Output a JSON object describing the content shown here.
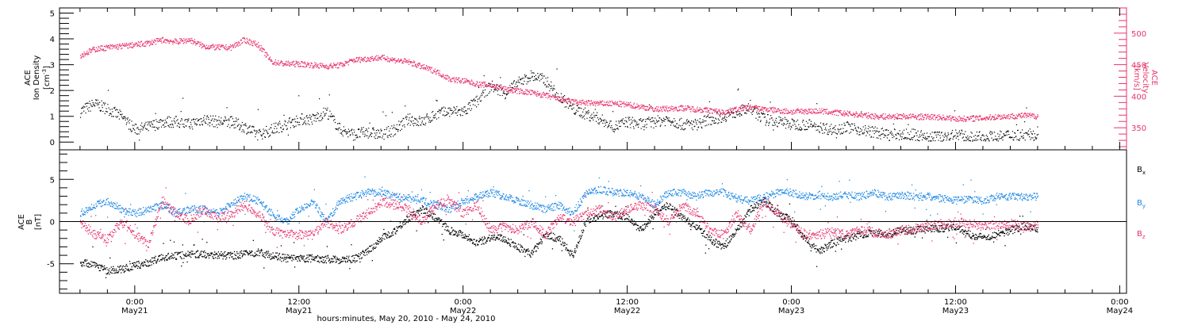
{
  "figure": {
    "xlabel": "hours:minutes, May 20, 2010 - May 24, 2010",
    "colors": {
      "axis": "#000000",
      "black": "#000000",
      "pink": "#e8336b",
      "blue": "#1e88e5"
    }
  },
  "chart_data": [
    {
      "type": "scatter",
      "name": "density-velocity",
      "left_ylabel_lines": [
        "ACE",
        "Ion Density"
      ],
      "left_unit": "[cm",
      "left_unit_sup": "-3",
      "left_unit_end": "]",
      "right_ylabel_lines": [
        "ACE",
        "Velocity",
        "[km/s]"
      ],
      "ylim_left": [
        -0.3,
        5.2
      ],
      "ylim_right": [
        315,
        540
      ],
      "yticks_left": [
        {
          "v": 0,
          "label": "0"
        },
        {
          "v": 1,
          "label": "1"
        },
        {
          "v": 2,
          "label": "2"
        },
        {
          "v": 3,
          "label": "3"
        },
        {
          "v": 4,
          "label": "4"
        },
        {
          "v": 5,
          "label": "5"
        }
      ],
      "yticks_right": [
        {
          "v": 350,
          "label": "350"
        },
        {
          "v": 400,
          "label": "400"
        },
        {
          "v": 450,
          "label": "450"
        },
        {
          "v": 500,
          "label": "500"
        }
      ],
      "density_hours": [
        -4,
        -3,
        -2,
        -1,
        0,
        1,
        2,
        3,
        4,
        5,
        6,
        7,
        8,
        9,
        10,
        11,
        12,
        13,
        14,
        15,
        16,
        17,
        18,
        19,
        20,
        21,
        22,
        23,
        24,
        25,
        26,
        27,
        28,
        29,
        30,
        31,
        32,
        33,
        34,
        35,
        36,
        37,
        38,
        39,
        40,
        41,
        42,
        43,
        44,
        45,
        46,
        47,
        48,
        49,
        50,
        51,
        52,
        53,
        54,
        55,
        56,
        57,
        58,
        59,
        60,
        61,
        62,
        63,
        64,
        65,
        66
      ],
      "density_values": [
        1.2,
        1.5,
        1.3,
        1.0,
        0.5,
        0.6,
        0.8,
        0.8,
        0.7,
        0.9,
        0.8,
        0.8,
        0.6,
        0.3,
        0.5,
        0.7,
        0.9,
        0.9,
        1.2,
        0.5,
        0.3,
        0.4,
        0.3,
        0.5,
        0.9,
        0.8,
        1.1,
        1.2,
        1.2,
        1.6,
        2.2,
        1.9,
        2.3,
        2.6,
        2.4,
        1.8,
        1.3,
        1.1,
        0.9,
        0.6,
        0.8,
        0.7,
        0.8,
        0.9,
        0.7,
        0.7,
        0.9,
        1.0,
        1.2,
        1.3,
        0.9,
        0.8,
        0.7,
        0.7,
        0.6,
        0.5,
        0.6,
        0.5,
        0.4,
        0.3,
        0.3,
        0.3,
        0.2,
        0.2,
        0.3,
        0.2,
        0.2,
        0.2,
        0.3,
        0.3,
        0.3
      ],
      "velocity_hours": [
        -4,
        -3,
        -2,
        -1,
        0,
        1,
        2,
        3,
        4,
        5,
        6,
        7,
        8,
        9,
        10,
        11,
        12,
        13,
        14,
        15,
        16,
        17,
        18,
        19,
        20,
        21,
        22,
        23,
        24,
        25,
        26,
        27,
        28,
        29,
        30,
        31,
        32,
        33,
        34,
        35,
        36,
        37,
        38,
        39,
        40,
        41,
        42,
        43,
        44,
        45,
        46,
        47,
        48,
        49,
        50,
        51,
        52,
        53,
        54,
        55,
        56,
        57,
        58,
        59,
        60,
        61,
        62,
        63,
        64,
        65,
        66
      ],
      "velocity_values": [
        465,
        475,
        478,
        480,
        482,
        485,
        490,
        487,
        490,
        480,
        478,
        478,
        490,
        482,
        455,
        452,
        452,
        450,
        448,
        450,
        458,
        460,
        462,
        458,
        455,
        447,
        440,
        428,
        425,
        420,
        418,
        412,
        409,
        406,
        402,
        396,
        392,
        390,
        389,
        389,
        387,
        384,
        380,
        381,
        382,
        380,
        378,
        375,
        380,
        383,
        380,
        378,
        376,
        377,
        377,
        375,
        373,
        371,
        369,
        368,
        369,
        368,
        368,
        367,
        365,
        365,
        366,
        368,
        369,
        370,
        369
      ]
    },
    {
      "type": "scatter",
      "name": "magnetic-field",
      "ylabel_lines": [
        "ACE",
        "B"
      ],
      "ylabel_unit": "[nT]",
      "ylim": [
        -8.5,
        8.5
      ],
      "yticks": [
        {
          "v": -5,
          "label": "-5"
        },
        {
          "v": 0,
          "label": "0"
        },
        {
          "v": 5,
          "label": "5"
        }
      ],
      "zero_line": 0,
      "legend": [
        {
          "base": "B",
          "sub": "x",
          "color": "#000000"
        },
        {
          "base": "B",
          "sub": "y",
          "color": "#1e88e5"
        },
        {
          "base": "B",
          "sub": "z",
          "color": "#e8336b"
        }
      ],
      "hours": [
        -4,
        -3,
        -2,
        -1,
        0,
        1,
        2,
        3,
        4,
        5,
        6,
        7,
        8,
        9,
        10,
        11,
        12,
        13,
        14,
        15,
        16,
        17,
        18,
        19,
        20,
        21,
        22,
        23,
        24,
        25,
        26,
        27,
        28,
        29,
        30,
        31,
        32,
        33,
        34,
        35,
        36,
        37,
        38,
        39,
        40,
        41,
        42,
        43,
        44,
        45,
        46,
        47,
        48,
        49,
        50,
        51,
        52,
        53,
        54,
        55,
        56,
        57,
        58,
        59,
        60,
        61,
        62,
        63,
        64,
        65,
        66
      ],
      "bx": [
        -4.8,
        -5.0,
        -5.8,
        -5.6,
        -5.2,
        -4.8,
        -4.2,
        -4.0,
        -3.8,
        -3.8,
        -3.9,
        -4.0,
        -3.8,
        -3.6,
        -4.0,
        -4.3,
        -4.4,
        -4.3,
        -4.4,
        -4.5,
        -4.4,
        -3.5,
        -2.0,
        -1.0,
        0.5,
        1.5,
        0.5,
        -1.0,
        -1.5,
        -2.5,
        -1.8,
        -2.0,
        -3.0,
        -3.8,
        -1.5,
        -2.0,
        -4.0,
        0.2,
        0.8,
        1.0,
        0.5,
        -1.0,
        1.0,
        2.0,
        0.5,
        -0.5,
        -2.0,
        -3.0,
        -1.0,
        1.5,
        2.5,
        1.0,
        0.2,
        -2.0,
        -3.5,
        -2.5,
        -2.0,
        -1.5,
        -1.2,
        -1.5,
        -1.0,
        -1.0,
        -0.8,
        -0.8,
        -0.5,
        -1.5,
        -1.8,
        -1.5,
        -1.0,
        -0.5,
        -0.8
      ],
      "by": [
        1.0,
        2.0,
        2.5,
        1.5,
        1.0,
        1.5,
        2.0,
        1.0,
        1.5,
        1.5,
        1.0,
        2.0,
        3.0,
        2.5,
        1.0,
        0.0,
        1.5,
        2.5,
        0.0,
        2.5,
        3.0,
        3.5,
        3.5,
        3.0,
        2.8,
        2.5,
        2.0,
        1.5,
        2.5,
        3.0,
        3.5,
        3.0,
        2.5,
        2.0,
        1.5,
        2.0,
        1.0,
        3.5,
        3.8,
        3.5,
        3.5,
        3.0,
        2.0,
        3.5,
        3.5,
        3.0,
        3.5,
        3.5,
        2.8,
        2.5,
        3.0,
        3.5,
        3.5,
        3.0,
        3.2,
        3.0,
        3.2,
        3.0,
        3.5,
        3.0,
        3.2,
        3.0,
        3.0,
        2.8,
        2.5,
        2.8,
        2.5,
        3.0,
        3.0,
        3.0,
        3.0
      ],
      "bz": [
        0.0,
        -1.5,
        -2.0,
        0.0,
        -1.5,
        -2.5,
        2.5,
        1.0,
        0.0,
        1.5,
        0.5,
        0.8,
        2.0,
        1.0,
        -1.0,
        -1.5,
        -1.5,
        -1.5,
        0.0,
        -1.0,
        0.0,
        1.0,
        2.5,
        2.0,
        1.5,
        0.0,
        2.0,
        2.5,
        1.0,
        2.0,
        -1.0,
        -0.5,
        -1.0,
        0.0,
        -1.5,
        0.5,
        0.0,
        1.0,
        1.5,
        0.5,
        1.5,
        2.0,
        1.5,
        0.0,
        2.0,
        1.0,
        -1.0,
        -1.5,
        1.0,
        -1.0,
        2.5,
        1.0,
        -0.5,
        -1.5,
        -1.5,
        -1.2,
        -1.5,
        -1.0,
        -1.2,
        -1.5,
        -1.0,
        -0.8,
        -0.5,
        -0.2,
        0.0,
        -0.2,
        -0.5,
        -0.3,
        -0.2,
        -0.5,
        -0.3
      ]
    }
  ],
  "x_axis": {
    "xlim_hours": [
      -5.5,
      72.5
    ],
    "ticks": [
      {
        "h": 0,
        "time": "0:00",
        "date": "May21"
      },
      {
        "h": 12,
        "time": "12:00",
        "date": "May21"
      },
      {
        "h": 24,
        "time": "0:00",
        "date": "May22"
      },
      {
        "h": 36,
        "time": "12:00",
        "date": "May22"
      },
      {
        "h": 48,
        "time": "0:00",
        "date": "May23"
      },
      {
        "h": 60,
        "time": "12:00",
        "date": "May23"
      },
      {
        "h": 72,
        "time": "0:00",
        "date": "May24"
      }
    ]
  }
}
